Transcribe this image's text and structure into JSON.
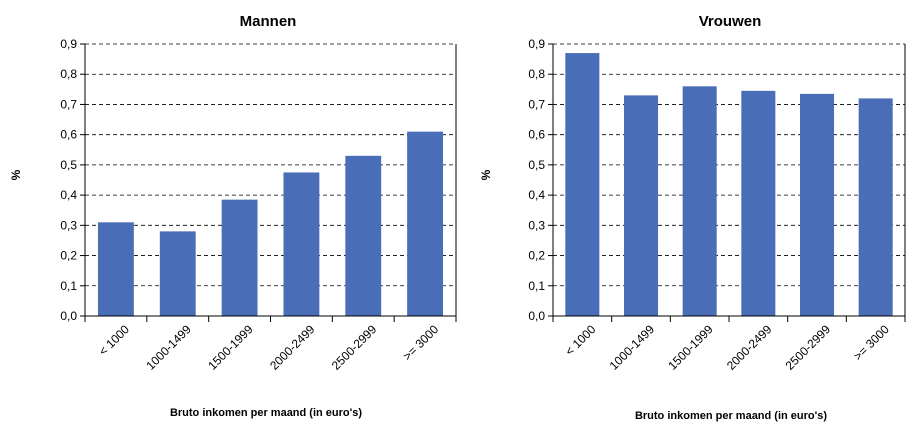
{
  "chart_data": [
    {
      "type": "bar",
      "title": "Mannen",
      "xlabel": "Bruto inkomen per maand (in euro's)",
      "ylabel": "%",
      "categories": [
        "< 1000",
        "1000-1499",
        "1500-1999",
        "2000-2499",
        "2500-2999",
        ">= 3000"
      ],
      "values": [
        0.31,
        0.28,
        0.385,
        0.475,
        0.53,
        0.61
      ],
      "ylim": [
        0,
        0.9
      ],
      "yticks": [
        "0,0",
        "0,1",
        "0,2",
        "0,3",
        "0,4",
        "0,5",
        "0,6",
        "0,7",
        "0,8",
        "0,9"
      ],
      "grid": "dashed-horizontal",
      "bar_color": "#4A6DB8"
    },
    {
      "type": "bar",
      "title": "Vrouwen",
      "xlabel": "Bruto inkomen per maand (in euro's)",
      "ylabel": "%",
      "categories": [
        "< 1000",
        "1000-1499",
        "1500-1999",
        "2000-2499",
        "2500-2999",
        ">= 3000"
      ],
      "values": [
        0.87,
        0.73,
        0.76,
        0.745,
        0.735,
        0.72
      ],
      "ylim": [
        0,
        0.9
      ],
      "yticks": [
        "0,0",
        "0,1",
        "0,2",
        "0,3",
        "0,4",
        "0,5",
        "0,6",
        "0,7",
        "0,8",
        "0,9"
      ],
      "grid": "dashed-horizontal",
      "bar_color": "#4A6DB8"
    }
  ]
}
